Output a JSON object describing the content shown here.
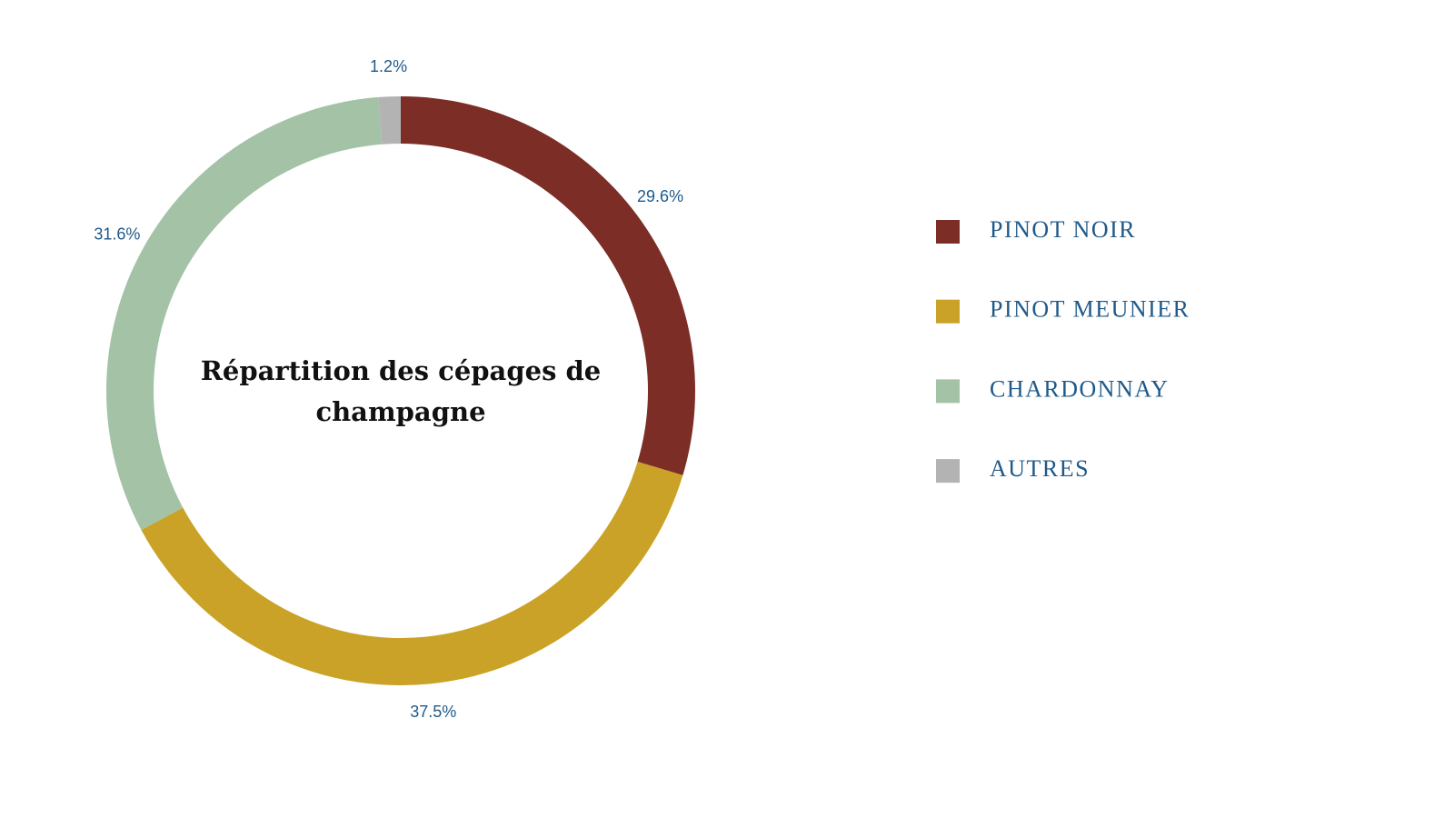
{
  "chart_data": {
    "type": "donut",
    "title": "Répartition des cépages de champagne",
    "categories": [
      "PINOT NOIR",
      "PINOT MEUNIER",
      "CHARDONNAY",
      "AUTRES"
    ],
    "values": [
      29.6,
      37.5,
      31.6,
      1.2
    ],
    "value_labels": [
      "29.6%",
      "37.5%",
      "31.6%",
      "1.2%"
    ],
    "colors": [
      "#7b2d26",
      "#c9a227",
      "#a3c2a6",
      "#b3b3b3"
    ],
    "legend": "right"
  }
}
